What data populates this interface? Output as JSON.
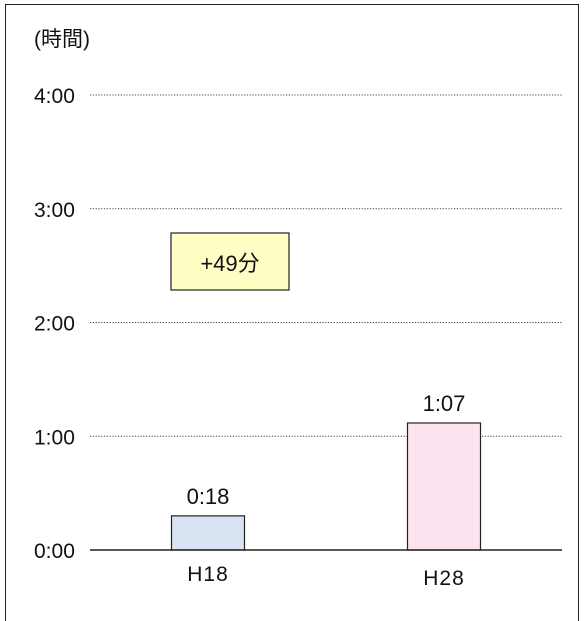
{
  "chart_data": {
    "type": "bar",
    "unit_label": "(時間)",
    "y_ticks": [
      "0:00",
      "1:00",
      "2:00",
      "3:00",
      "4:00"
    ],
    "ylim": [
      0,
      240
    ],
    "categories": [
      "H18",
      "H28"
    ],
    "values": [
      18,
      67
    ],
    "value_labels": [
      "0:18",
      "1:07"
    ],
    "bar_colors": [
      "#dae3f3",
      "#fde2ef"
    ],
    "grid": "dotted",
    "annotation": {
      "text": "+49分",
      "fill": "#ffffc5"
    }
  }
}
